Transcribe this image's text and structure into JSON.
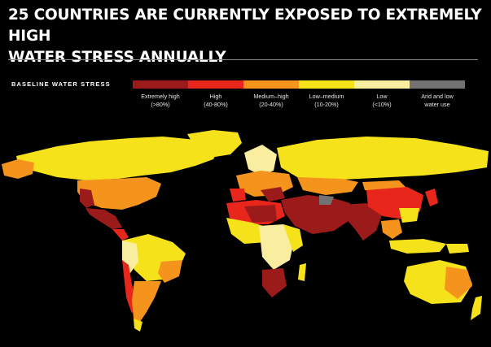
{
  "title": {
    "line1": "25 COUNTRIES ARE CURRENTLY EXPOSED TO EXTREMELY HIGH",
    "line2": "WATER STRESS ANNUALLY"
  },
  "legend": {
    "heading": "BASELINE WATER STRESS",
    "items": [
      {
        "name": "Extremely high",
        "range": "(>80%)",
        "color": "#9b1b1b"
      },
      {
        "name": "High",
        "range": "(40-80%)",
        "color": "#e8261c"
      },
      {
        "name": "Medium–high",
        "range": "(20-40%)",
        "color": "#f5941d"
      },
      {
        "name": "Low–medium",
        "range": "(10-20%)",
        "color": "#f6e21a"
      },
      {
        "name": "Low",
        "range": "(<10%)",
        "color": "#f9eda0"
      },
      {
        "name": "Arid and low",
        "range": "water use",
        "color": "#737373"
      }
    ]
  }
}
